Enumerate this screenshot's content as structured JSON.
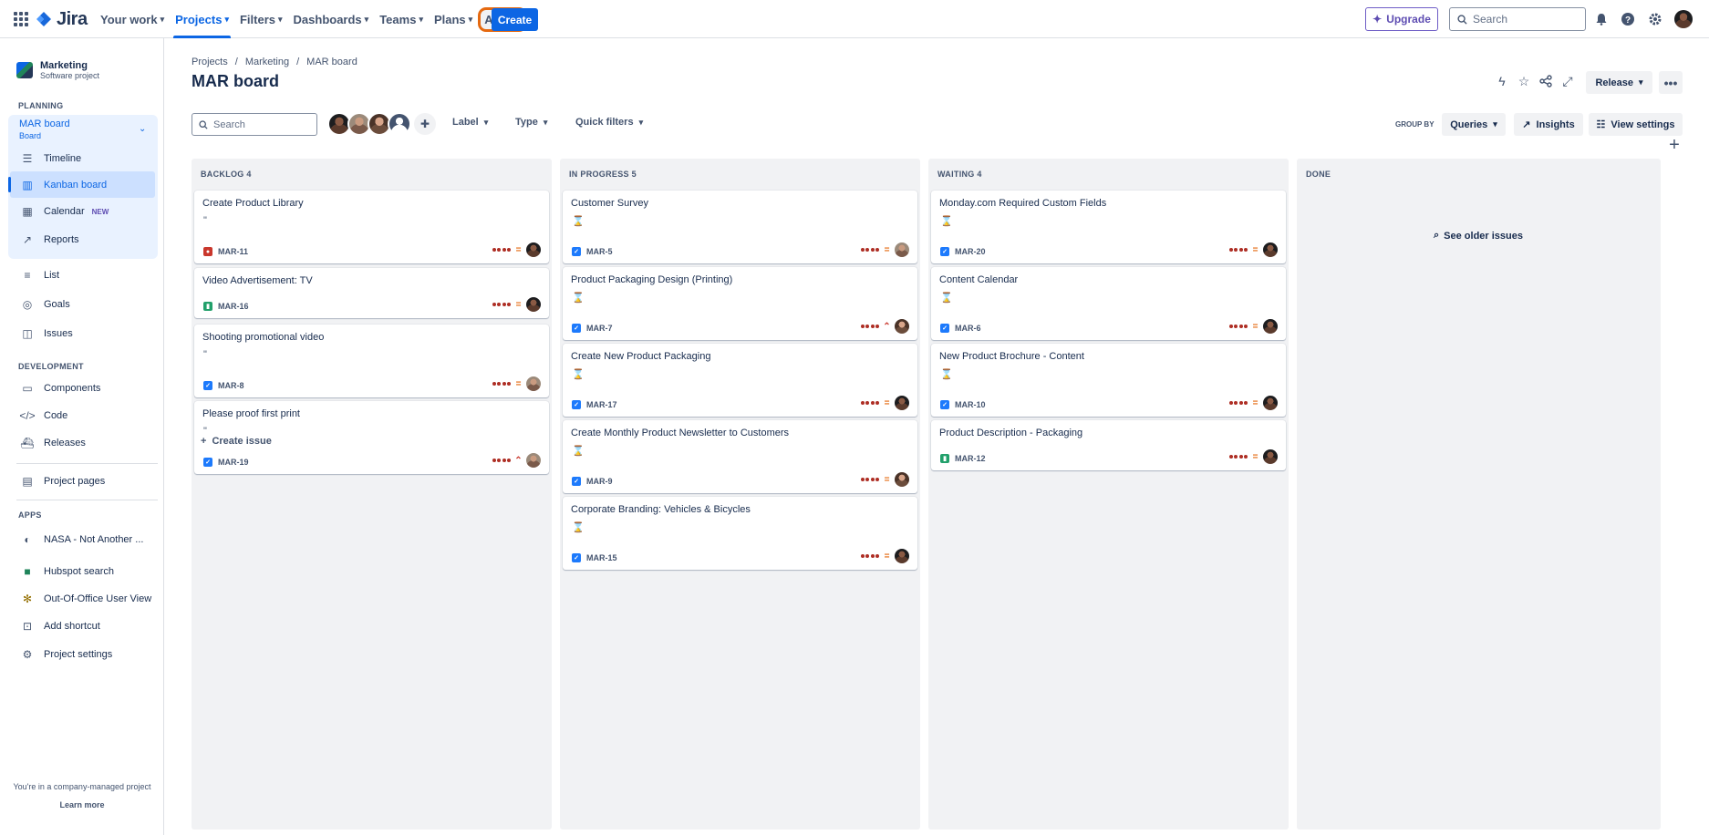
{
  "topnav": {
    "logo": "Jira",
    "items": [
      "Your work",
      "Projects",
      "Filters",
      "Dashboards",
      "Teams",
      "Plans",
      "Apps"
    ],
    "create": "Create",
    "upgrade": "Upgrade",
    "search_placeholder": "Search"
  },
  "sidebar": {
    "project_name": "Marketing",
    "project_type": "Software project",
    "planning_heading": "PLANNING",
    "board_name": "MAR board",
    "board_sub": "Board",
    "planning_items": [
      "Timeline",
      "Kanban board",
      "Calendar",
      "Reports"
    ],
    "new_tag": "NEW",
    "other_items": [
      "List",
      "Goals",
      "Issues"
    ],
    "development_heading": "DEVELOPMENT",
    "dev_items": [
      "Components",
      "Code",
      "Releases"
    ],
    "project_pages": "Project pages",
    "apps_heading": "APPS",
    "apps": [
      "NASA - Not Another ...",
      "Hubspot search",
      "Out-Of-Office User View",
      "Add shortcut",
      "Project settings"
    ],
    "footer_text": "You're in a company-managed project",
    "footer_link": "Learn more"
  },
  "header": {
    "breadcrumbs": [
      "Projects",
      "Marketing",
      "MAR board"
    ],
    "title": "MAR board",
    "release": "Release",
    "search_placeholder": "Search",
    "filters": [
      "Label",
      "Type",
      "Quick filters"
    ],
    "group_by_label": "GROUP BY",
    "group_by_value": "Queries",
    "insights": "Insights",
    "view_settings": "View settings"
  },
  "columns": [
    {
      "title": "BACKLOG 4",
      "cards": [
        {
          "title": "Create Product Library",
          "key": "MAR-11",
          "type": "bug",
          "icon": "\"",
          "priority": "medium",
          "avatar": "dark"
        },
        {
          "title": "Video Advertisement: TV",
          "key": "MAR-16",
          "type": "story",
          "icon": "",
          "priority": "medium",
          "avatar": "dark"
        },
        {
          "title": "Shooting promotional video",
          "key": "MAR-8",
          "type": "task",
          "icon": "\"",
          "priority": "medium",
          "avatar": "mid"
        },
        {
          "title": "Please proof first print",
          "key": "MAR-19",
          "type": "task",
          "icon": "\"",
          "priority": "high",
          "avatar": "mid"
        }
      ],
      "create_issue": "Create issue"
    },
    {
      "title": "IN PROGRESS 5",
      "cards": [
        {
          "title": "Customer Survey",
          "key": "MAR-5",
          "type": "task",
          "icon": "⌛",
          "priority": "medium",
          "avatar": "mid"
        },
        {
          "title": "Product Packaging Design (Printing)",
          "key": "MAR-7",
          "type": "task",
          "icon": "⌛",
          "priority": "high",
          "avatar": "warm"
        },
        {
          "title": "Create New Product Packaging",
          "key": "MAR-17",
          "type": "task",
          "icon": "⌛",
          "priority": "medium",
          "avatar": "dark"
        },
        {
          "title": "Create Monthly Product Newsletter to Customers",
          "key": "MAR-9",
          "type": "task",
          "icon": "⌛",
          "priority": "medium",
          "avatar": "warm"
        },
        {
          "title": "Corporate Branding: Vehicles & Bicycles",
          "key": "MAR-15",
          "type": "task",
          "icon": "⌛",
          "priority": "medium",
          "avatar": "dark"
        }
      ]
    },
    {
      "title": "WAITING 4",
      "cards": [
        {
          "title": "Monday.com Required Custom Fields",
          "key": "MAR-20",
          "type": "task",
          "icon": "⌛",
          "priority": "medium",
          "avatar": "dark"
        },
        {
          "title": "Content Calendar",
          "key": "MAR-6",
          "type": "task",
          "icon": "⌛",
          "priority": "medium",
          "avatar": "dark"
        },
        {
          "title": "New Product Brochure - Content",
          "key": "MAR-10",
          "type": "task",
          "icon": "⌛",
          "priority": "medium",
          "avatar": "dark"
        },
        {
          "title": "Product Description - Packaging",
          "key": "MAR-12",
          "type": "story",
          "icon": "",
          "priority": "medium",
          "avatar": "dark"
        }
      ]
    },
    {
      "title": "DONE",
      "cards": [],
      "see_older": "See older issues"
    }
  ],
  "colors": {
    "accent": "#0c66e4",
    "apps_highlight": "#e56910",
    "priority_dots": "#ae2e24"
  }
}
